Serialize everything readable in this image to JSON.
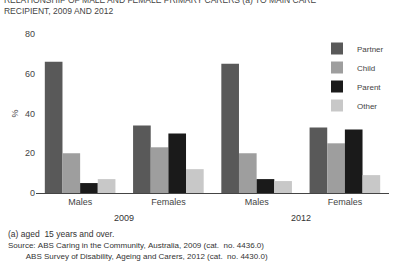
{
  "chart_data": {
    "type": "bar",
    "title": "RELATIONSHIP OF MALE AND FEMALE PRIMARY CARERS (a) TO MAIN CARE",
    "subtitle": "RECIPIENT, 2009 AND 2012",
    "ylabel": "%",
    "categories": [
      "Males",
      "Females",
      "Males",
      "Females"
    ],
    "series": [
      {
        "name": "Partner",
        "color": "#595959",
        "values": [
          66,
          34,
          65,
          33
        ]
      },
      {
        "name": "Child",
        "color": "#9e9e9e",
        "values": [
          20,
          23,
          20,
          25
        ]
      },
      {
        "name": "Parent",
        "color": "#1a1a1a",
        "values": [
          5,
          30,
          7,
          32
        ]
      },
      {
        "name": "Other",
        "color": "#c8c8c8",
        "values": [
          7,
          12,
          6,
          9
        ]
      }
    ],
    "ylim": [
      0,
      80
    ],
    "yticks": [
      0,
      20,
      40,
      60,
      80
    ],
    "grid": false,
    "legend": "upper right",
    "annotations": [
      "2009",
      "2012"
    ],
    "footnotes": [
      "(a) aged  15 years and over.",
      "Source: ABS Caring in the Community, Australia, 2009 (cat.  no. 4436.0)",
      "        ABS Survey of Disability, Ageing and Carers, 2012 (cat.  no. 4430.0)"
    ]
  }
}
